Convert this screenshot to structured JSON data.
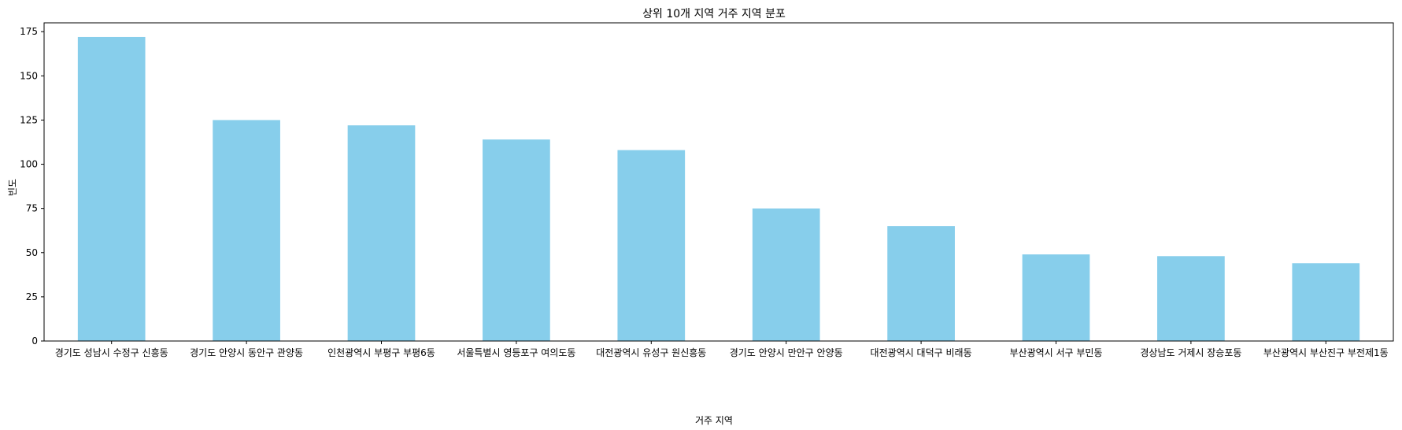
{
  "chart_data": {
    "type": "bar",
    "title": "상위 10개 지역 거주 지역 분포",
    "xlabel": "거주 지역",
    "ylabel": "빈도",
    "categories": [
      "경기도 성남시 수정구 신흥동",
      "경기도 안양시 동안구 관양동",
      "인천광역시 부평구 부평6동",
      "서울특별시 영등포구 여의도동",
      "대전광역시 유성구 원신흥동",
      "경기도 안양시 만안구 안양동",
      "대전광역시 대덕구 비래동",
      "부산광역시 서구 부민동",
      "경상남도 거제시 장승포동",
      "부산광역시 부산진구 부전제1동"
    ],
    "values": [
      172,
      125,
      122,
      114,
      108,
      75,
      65,
      49,
      48,
      44
    ],
    "ylim": [
      0,
      180
    ],
    "yticks": [
      0,
      25,
      50,
      75,
      100,
      125,
      150,
      175
    ],
    "bar_color": "#87CEEB",
    "grid": false,
    "legend": "none"
  }
}
